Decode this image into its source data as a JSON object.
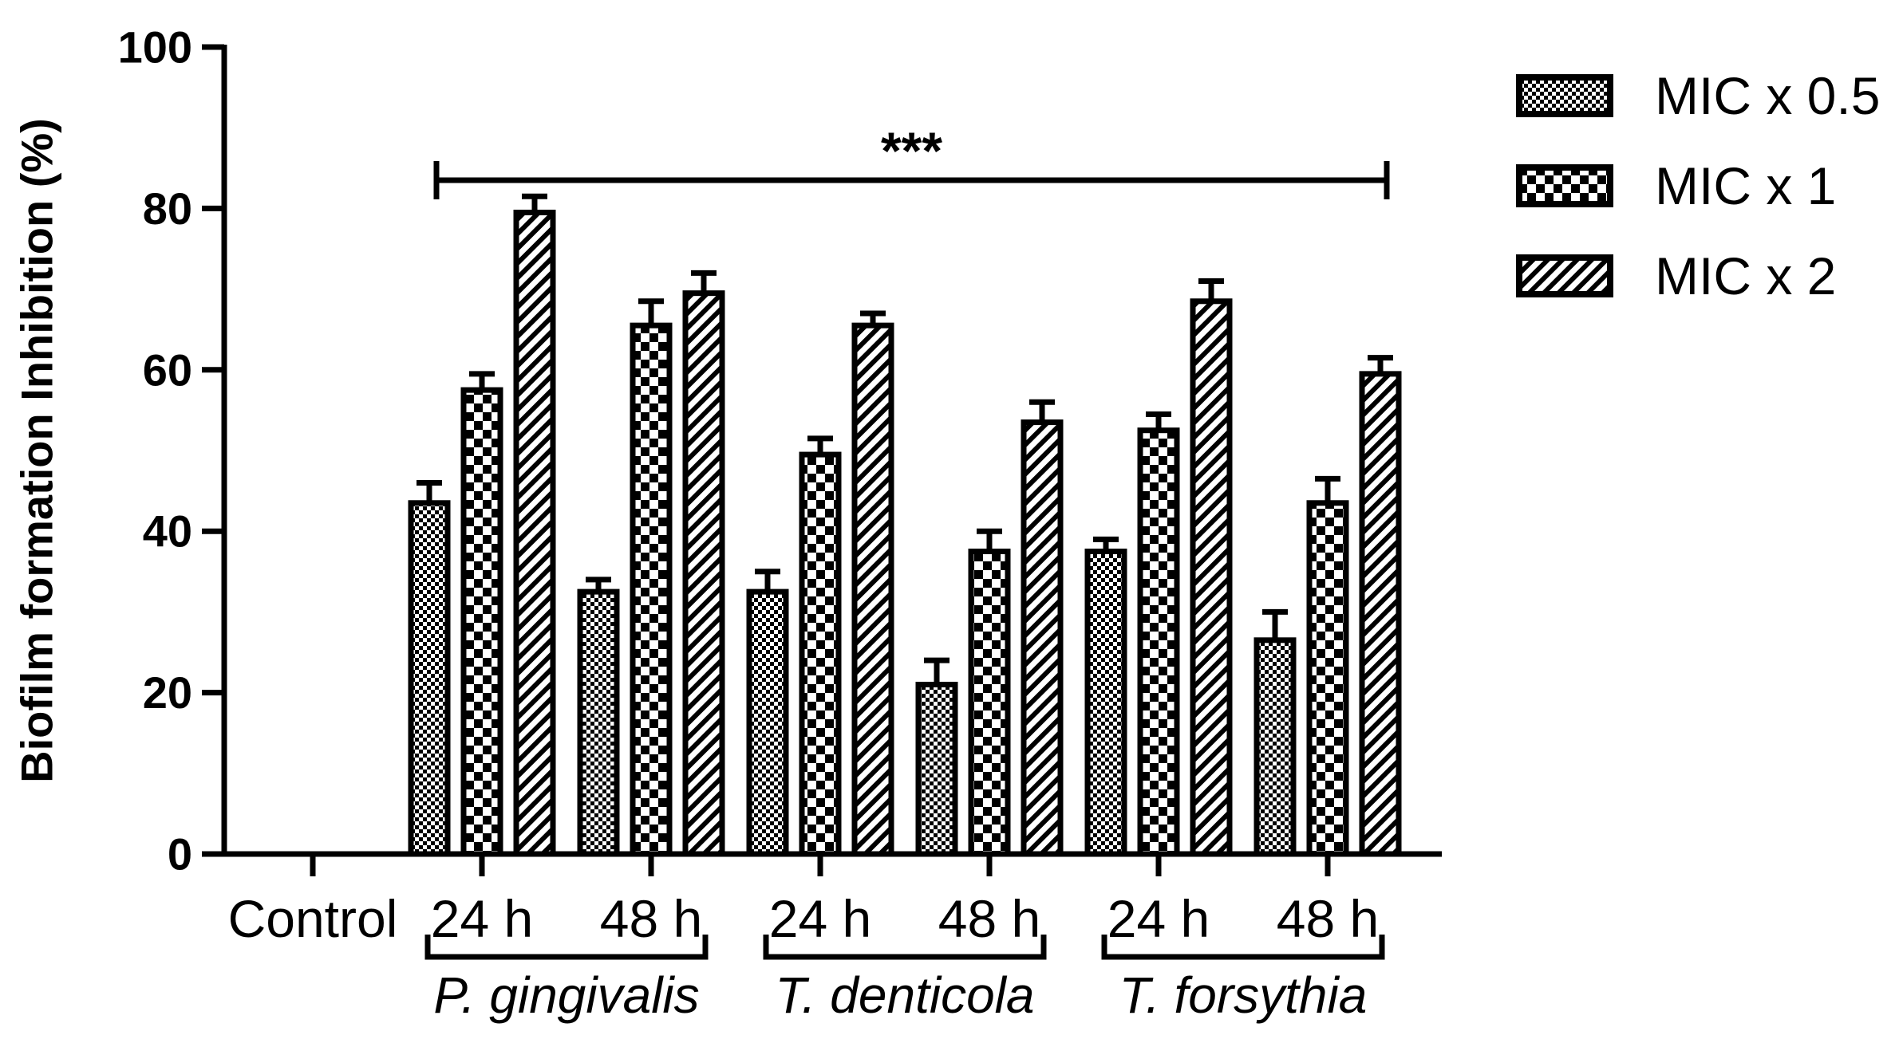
{
  "chart_data": {
    "type": "bar",
    "ylabel": "Biofilm formation Inhibition (%)",
    "ylim": [
      0,
      100
    ],
    "yticks": [
      0,
      20,
      40,
      60,
      80,
      100
    ],
    "categories": [
      "Control",
      "24 h",
      "48 h",
      "24 h",
      "48 h",
      "24 h",
      "48 h"
    ],
    "groups": [
      {
        "label": "P. gingivalis",
        "categories": [
          1,
          2
        ]
      },
      {
        "label": "T. denticola",
        "categories": [
          3,
          4
        ]
      },
      {
        "label": "T. forsythia",
        "categories": [
          5,
          6
        ]
      }
    ],
    "series": [
      {
        "name": "MIC x 0.5",
        "pattern": "checker",
        "values": [
          0,
          43.5,
          32.5,
          32.5,
          21,
          37.5,
          26.5
        ],
        "errors": [
          0,
          2.5,
          1.5,
          2.5,
          3,
          1.5,
          3.5
        ]
      },
      {
        "name": "MIC x 1",
        "pattern": "checker-large",
        "values": [
          0,
          57.5,
          65.5,
          49.5,
          37.5,
          52.5,
          43.5
        ],
        "errors": [
          0,
          2,
          3,
          2,
          2.5,
          2,
          3
        ]
      },
      {
        "name": "MIC x 2",
        "pattern": "diagonal",
        "values": [
          0,
          79.5,
          69.5,
          65.5,
          53.5,
          68.5,
          59.5
        ],
        "errors": [
          0,
          2,
          2.5,
          1.5,
          2.5,
          2.5,
          2
        ]
      }
    ],
    "annotation": {
      "text": "***",
      "from_category": 1,
      "to_category": 6,
      "y": 83.5
    },
    "legend_position": "top-right",
    "grid": false,
    "colors": {
      "ink": "#000000",
      "background": "#ffffff"
    }
  }
}
